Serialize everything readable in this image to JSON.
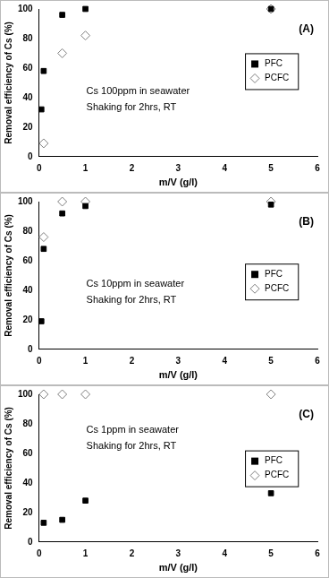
{
  "chart_data": [
    {
      "type": "scatter",
      "title": "(A)",
      "annotations": [
        "Cs 100ppm in seawater",
        "Shaking for 2hrs, RT"
      ],
      "x_label": "m/V (g/l)",
      "y_label": "Removal efficiency of Cs (%)",
      "xlim": [
        0,
        6
      ],
      "xticks": [
        0,
        1,
        2,
        3,
        4,
        5,
        6
      ],
      "ylim": [
        0,
        100
      ],
      "yticks": [
        0,
        20,
        40,
        60,
        80,
        100
      ],
      "grid": false,
      "legend": "right",
      "series": [
        {
          "name": "PFC",
          "color": "#000000",
          "marker": "square",
          "x": [
            0.05,
            0.1,
            0.5,
            1,
            5
          ],
          "values": [
            32,
            58,
            96,
            100,
            100
          ]
        },
        {
          "name": "PCFC",
          "color": "#7f7f7f",
          "marker": "diamond",
          "x": [
            0.1,
            0.5,
            1,
            5
          ],
          "values": [
            9,
            70,
            82,
            100
          ]
        }
      ]
    },
    {
      "type": "scatter",
      "title": "(B)",
      "annotations": [
        "Cs 10ppm in seawater",
        "Shaking for 2hrs, RT"
      ],
      "x_label": "m/V (g/l)",
      "y_label": "Removal efficiency of Cs (%)",
      "xlim": [
        0,
        6
      ],
      "xticks": [
        0,
        1,
        2,
        3,
        4,
        5,
        6
      ],
      "ylim": [
        0,
        100
      ],
      "yticks": [
        0,
        20,
        40,
        60,
        80,
        100
      ],
      "grid": false,
      "legend": "right",
      "series": [
        {
          "name": "PFC",
          "color": "#000000",
          "marker": "square",
          "x": [
            0.05,
            0.1,
            0.5,
            1,
            5
          ],
          "values": [
            19,
            68,
            92,
            97,
            98
          ]
        },
        {
          "name": "PCFC",
          "color": "#7f7f7f",
          "marker": "diamond",
          "x": [
            0.1,
            0.5,
            1,
            5
          ],
          "values": [
            76,
            100,
            100,
            100
          ]
        }
      ]
    },
    {
      "type": "scatter",
      "title": "(C)",
      "annotations": [
        "Cs 1ppm in seawater",
        "Shaking for 2hrs, RT"
      ],
      "x_label": "m/V (g/l)",
      "y_label": "Removal efficiency of Cs (%)",
      "xlim": [
        0,
        6
      ],
      "xticks": [
        0,
        1,
        2,
        3,
        4,
        5,
        6
      ],
      "ylim": [
        0,
        100
      ],
      "yticks": [
        0,
        20,
        40,
        60,
        80,
        100
      ],
      "grid": false,
      "legend": "right",
      "series": [
        {
          "name": "PFC",
          "color": "#000000",
          "marker": "square",
          "x": [
            0.1,
            0.5,
            1,
            5
          ],
          "values": [
            13,
            15,
            28,
            33
          ]
        },
        {
          "name": "PCFC",
          "color": "#7f7f7f",
          "marker": "diamond",
          "x": [
            0.1,
            0.5,
            1,
            5
          ],
          "values": [
            100,
            100,
            100,
            100
          ]
        }
      ]
    }
  ]
}
